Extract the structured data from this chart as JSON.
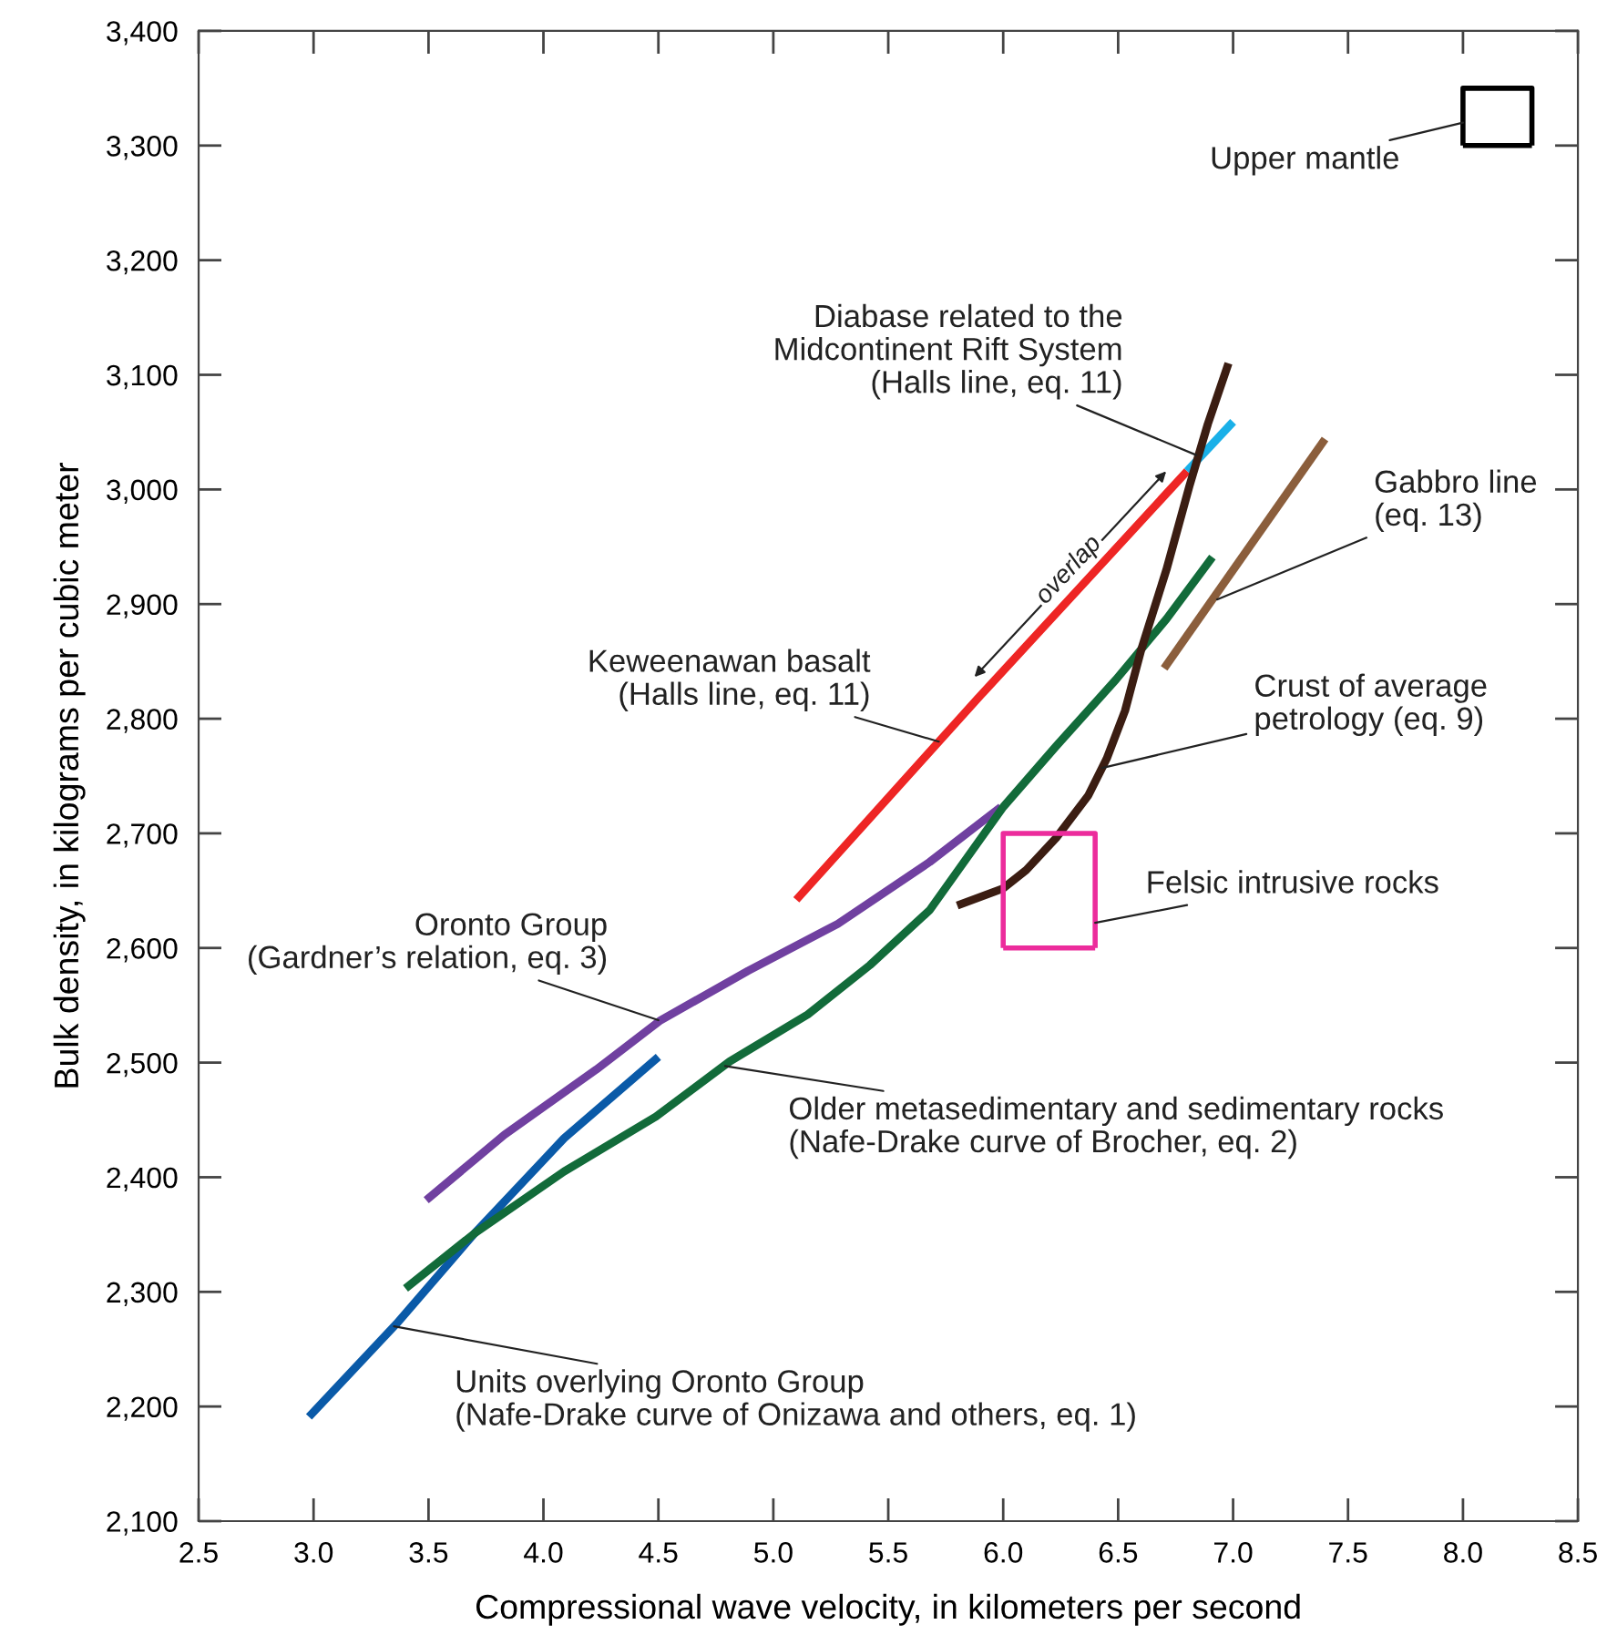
{
  "chart_data": {
    "type": "line",
    "xlabel": "Compressional wave velocity, in kilometers per second",
    "ylabel": "Bulk density, in kilograms per cubic meter",
    "xlim": [
      2.5,
      8.5
    ],
    "ylim": [
      2100,
      3400
    ],
    "xticks": [
      2.5,
      {
        "value": 3,
        "label": "3.0"
      },
      3.5,
      {
        "value": 4,
        "label": "4.0"
      },
      4.5,
      {
        "value": 5,
        "label": "5.0"
      },
      5.5,
      {
        "value": 6,
        "label": "6.0"
      },
      6.5,
      {
        "value": 7,
        "label": "7.0"
      },
      7.5,
      {
        "value": 8,
        "label": "8.0"
      },
      8.5
    ],
    "yticks": [
      {
        "value": 2100,
        "label": "2,100"
      },
      {
        "value": 2200,
        "label": "2,200"
      },
      {
        "value": 2300,
        "label": "2,300"
      },
      {
        "value": 2400,
        "label": "2,400"
      },
      {
        "value": 2500,
        "label": "2,500"
      },
      {
        "value": 2600,
        "label": "2,600"
      },
      {
        "value": 2700,
        "label": "2,700"
      },
      {
        "value": 2800,
        "label": "2,800"
      },
      {
        "value": 2900,
        "label": "2,900"
      },
      {
        "value": 3000,
        "label": "3,000"
      },
      {
        "value": 3100,
        "label": "3,100"
      },
      {
        "value": 3200,
        "label": "3,200"
      },
      {
        "value": 3300,
        "label": "3,300"
      },
      {
        "value": 3400,
        "label": "3,400"
      }
    ],
    "grid": false,
    "marker": "none",
    "line_style": "solid",
    "series": [
      {
        "color": "#0a5aa8",
        "x": [
          2.98,
          3.36,
          3.7,
          4.09,
          4.5
        ],
        "values": [
          2191,
          2272,
          2351,
          2434,
          2505
        ]
      },
      {
        "color": "#7040a0",
        "x": [
          3.49,
          3.83,
          4.23,
          4.51,
          4.89,
          5.28,
          5.68,
          5.99
        ],
        "values": [
          2380,
          2437,
          2494,
          2537,
          2580,
          2621,
          2675,
          2723
        ]
      },
      {
        "color": "#126b3a",
        "x": [
          3.4,
          3.7,
          4.09,
          4.49,
          4.81,
          5.15,
          5.42,
          5.68,
          6.0,
          6.23,
          6.49,
          6.71,
          6.91
        ],
        "values": [
          2303,
          2351,
          2405,
          2453,
          2501,
          2542,
          2585,
          2633,
          2723,
          2776,
          2834,
          2887,
          2941
        ]
      },
      {
        "color": "#ee2524",
        "x": [
          5.1,
          5.9,
          6.8
        ],
        "values": [
          2642,
          2820,
          3016
        ]
      },
      {
        "color": "#1ab0e8",
        "x": [
          6.8,
          7.0
        ],
        "values": [
          3016,
          3059
        ]
      },
      {
        "color": "#3b1d12",
        "x": [
          5.8,
          6.0,
          6.1,
          6.23,
          6.37,
          6.45,
          6.53,
          6.6,
          6.71,
          6.81,
          6.89,
          6.98
        ],
        "values": [
          2637,
          2652,
          2668,
          2696,
          2733,
          2765,
          2807,
          2860,
          2930,
          3003,
          3057,
          3110
        ]
      },
      {
        "color": "#8b5e3c",
        "x": [
          6.7,
          7.4
        ],
        "values": [
          2844,
          3044
        ]
      },
      {
        "color": "#ec2c9c",
        "x": [
          6.0,
          6.0,
          6.4,
          6.4
        ],
        "values": [
          2600,
          2700,
          2700,
          2600
        ]
      },
      {
        "color": "#000000",
        "x": [
          8.0,
          8.0,
          8.3,
          8.3
        ],
        "values": [
          3300,
          3350,
          3350,
          3300
        ]
      },
      {
        "color": "#ec2c9c",
        "x": [
          6.0,
          6.4
        ],
        "values": [
          2600,
          2600
        ]
      },
      {
        "color": "#000000",
        "x": [
          8.0,
          8.3
        ],
        "values": [
          3300,
          3300
        ]
      }
    ],
    "annotations": [
      {
        "text": "Upper mantle",
        "x": 8.0,
        "y": 3320
      },
      {
        "text": "Diabase related to the\nMidcontinent Rift System\n(Halls line, eq. 11)",
        "x": 6.84,
        "y": 3030
      },
      "overlap",
      {
        "text": "Keweenawan basalt\n(Halls line, eq. 11)",
        "x": 5.72,
        "y": 2780
      },
      {
        "text": "Gabbro line\n(eq. 13)",
        "x": 6.93,
        "y": 2904
      },
      {
        "text": "Crust of average\npetrology (eq. 9)",
        "x": 6.43,
        "y": 2757
      },
      {
        "text": "Felsic intrusive rocks",
        "x": 6.4,
        "y": 2622
      },
      {
        "text": "Oronto Group\n(Gardner’s relation, eq. 3)",
        "x": 4.5,
        "y": 2537
      },
      {
        "text": "Older metasedimentary and sedimentary rocks\n(Nafe-Drake curve of Brocher, eq. 2)",
        "x": 4.79,
        "y": 2497
      },
      {
        "text": "Units overlying Oronto Group\n(Nafe-Drake curve of Onizawa and others, eq. 1)",
        "x": 3.35,
        "y": 2270
      }
    ]
  }
}
